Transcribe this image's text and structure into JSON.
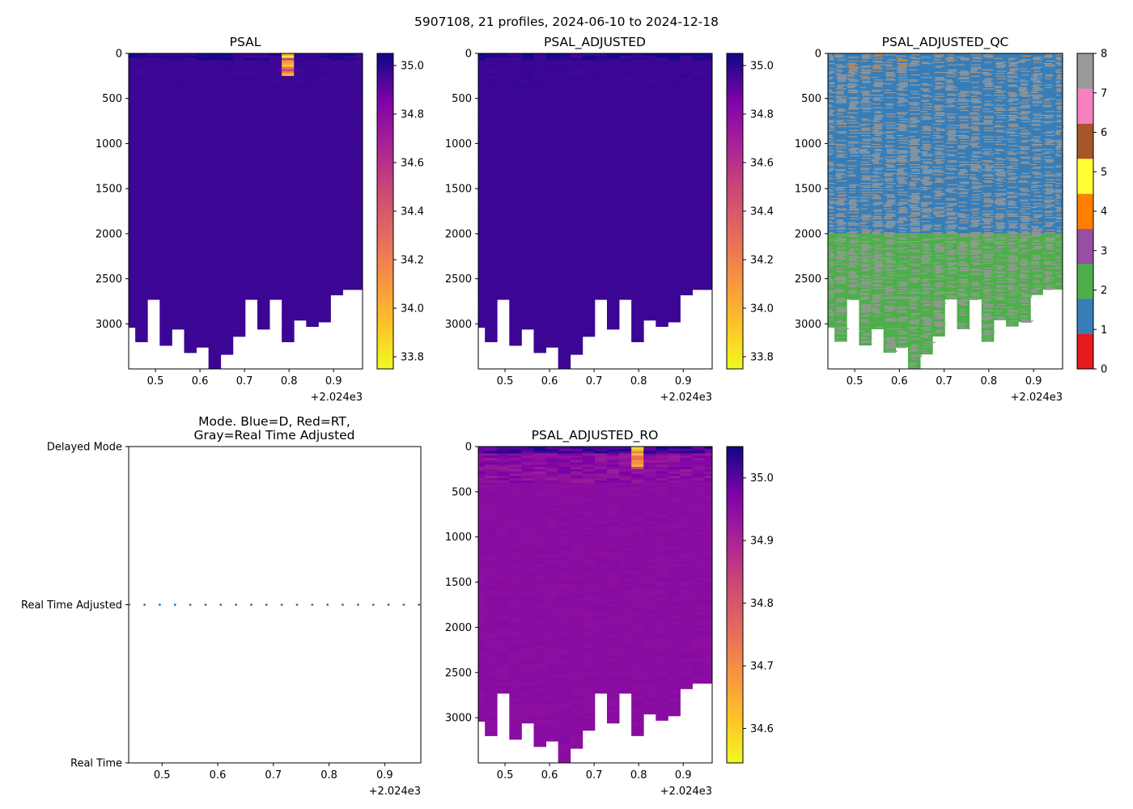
{
  "suptitle": "5907108, 21 profiles, 2024-06-10 to 2024-12-18",
  "x_offset_label": "+2.024e3",
  "x_ticks": [
    "0.5",
    "0.6",
    "0.7",
    "0.8",
    "0.9"
  ],
  "x_tick_values": [
    0.5,
    0.6,
    0.7,
    0.8,
    0.9
  ],
  "x_range": [
    0.44,
    0.965
  ],
  "depth_ticks": [
    "0",
    "500",
    "1000",
    "1500",
    "2000",
    "2500",
    "3000"
  ],
  "depth_tick_values": [
    0,
    500,
    1000,
    1500,
    2000,
    2500,
    3000
  ],
  "depth_range": [
    0,
    3500
  ],
  "profiles": {
    "count": 21,
    "times": [
      0.4411,
      0.4685,
      0.4959,
      0.5233,
      0.5507,
      0.5781,
      0.6055,
      0.6329,
      0.6603,
      0.6877,
      0.7151,
      0.7425,
      0.7699,
      0.7973,
      0.8247,
      0.8521,
      0.8795,
      0.9069,
      0.9343,
      0.9617,
      0.9652
    ],
    "max_depth": [
      3040,
      3200,
      2730,
      3240,
      3060,
      3320,
      3260,
      3500,
      3340,
      3140,
      2730,
      3060,
      2730,
      3200,
      2960,
      3030,
      2980,
      2680,
      2620,
      2620,
      2620
    ]
  },
  "qc_split_depth": 2000,
  "chart_data": [
    {
      "type": "heatmap",
      "title": "PSAL",
      "x_label_offset": "+2.024e3",
      "ylim": [
        3500,
        0
      ],
      "colorbar": {
        "colormap": "plasma_r",
        "range": [
          33.75,
          35.05
        ],
        "ticks": [
          "33.8",
          "34.0",
          "34.2",
          "34.4",
          "34.6",
          "34.8",
          "35.0"
        ],
        "tick_values": [
          33.8,
          34.0,
          34.2,
          34.4,
          34.6,
          34.8,
          35.0
        ]
      },
      "surface_anomaly": {
        "profile_index": 13,
        "depth_range": [
          0,
          250
        ],
        "min_value": 33.75
      }
    },
    {
      "type": "heatmap",
      "title": "PSAL_ADJUSTED",
      "x_label_offset": "+2.024e3",
      "ylim": [
        3500,
        0
      ],
      "colorbar": {
        "colormap": "plasma_r",
        "range": [
          33.75,
          35.05
        ],
        "ticks": [
          "33.8",
          "34.0",
          "34.2",
          "34.4",
          "34.6",
          "34.8",
          "35.0"
        ],
        "tick_values": [
          33.8,
          34.0,
          34.2,
          34.4,
          34.6,
          34.8,
          35.0
        ]
      }
    },
    {
      "type": "heatmap",
      "title": "PSAL_ADJUSTED_QC",
      "x_label_offset": "+2.024e3",
      "ylim": [
        3500,
        0
      ],
      "colorbar": {
        "colormap": "qc-categorical",
        "range": [
          0,
          8
        ],
        "ticks": [
          "0",
          "1",
          "2",
          "3",
          "4",
          "5",
          "6",
          "7",
          "8"
        ],
        "tick_values": [
          0,
          1,
          2,
          3,
          4,
          5,
          6,
          7,
          8
        ],
        "category_colors": [
          "#e41a1c",
          "#377eb8",
          "#4daf4a",
          "#984ea3",
          "#ff7f00",
          "#ffff33",
          "#a65628",
          "#f781bf",
          "#999999"
        ]
      },
      "regions": [
        {
          "depth_range": [
            0,
            2000
          ],
          "qc_flag": 1
        },
        {
          "depth_range": [
            2000,
            3500
          ],
          "qc_flag": 2
        }
      ]
    },
    {
      "type": "scatter",
      "title": "Mode. Blue=D, Red=RT,\nGray=Real Time Adjusted",
      "title_lines": [
        "Mode. Blue=D, Red=RT,",
        "Gray=Real Time Adjusted"
      ],
      "x_label_offset": "+2.024e3",
      "xlim": [
        0.44,
        0.965
      ],
      "y_categories": [
        "Real Time",
        "Real Time Adjusted",
        "Delayed Mode"
      ],
      "points_mode": "Real Time Adjusted",
      "point_color": "#1f77b4",
      "x": [
        0.4411,
        0.4685,
        0.4959,
        0.5233,
        0.5507,
        0.5781,
        0.6055,
        0.6329,
        0.6603,
        0.6877,
        0.7151,
        0.7425,
        0.7699,
        0.7973,
        0.8247,
        0.8521,
        0.8795,
        0.9069,
        0.9343,
        0.9617,
        0.9652
      ]
    },
    {
      "type": "heatmap",
      "title": "PSAL_ADJUSTED_RO",
      "x_label_offset": "+2.024e3",
      "ylim": [
        3500,
        0
      ],
      "colorbar": {
        "colormap": "plasma_r",
        "range": [
          34.545,
          35.05
        ],
        "ticks": [
          "34.6",
          "34.7",
          "34.8",
          "34.9",
          "35.0"
        ],
        "tick_values": [
          34.6,
          34.7,
          34.8,
          34.9,
          35.0
        ]
      },
      "surface_anomaly": {
        "profile_index": 13,
        "depth_range": [
          0,
          250
        ],
        "min_value": 34.56
      }
    }
  ]
}
